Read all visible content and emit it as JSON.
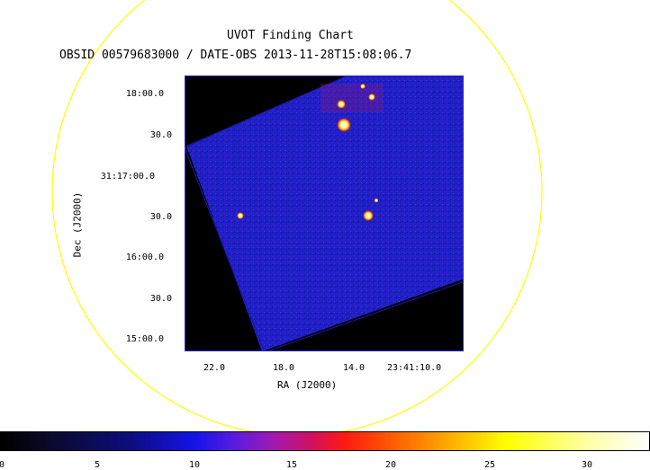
{
  "chart": {
    "title": "UVOT Finding Chart",
    "subtitle": "OBSID 00579683000 / DATE-OBS 2013-11-28T15:08:06.7",
    "dec_label": "Dec (J2000)",
    "ra_label": "RA (J2000)",
    "dec_ticks": [
      "18:00.0",
      "30.0",
      "31:17:00.0",
      "30.0",
      "16:00.0",
      "30.0",
      "15:00.0"
    ],
    "ra_ticks": [
      "22.0",
      "18.0",
      "14.0",
      "23:41:10.0"
    ]
  },
  "colorbar": {
    "ticks": [
      "0",
      "5",
      "10",
      "15",
      "20",
      "25",
      "30"
    ]
  },
  "colors": {
    "circle": "#ffff00",
    "frame_border": "#2a2ad8",
    "image_background": "#000000",
    "field_blue": "#2222cc"
  }
}
